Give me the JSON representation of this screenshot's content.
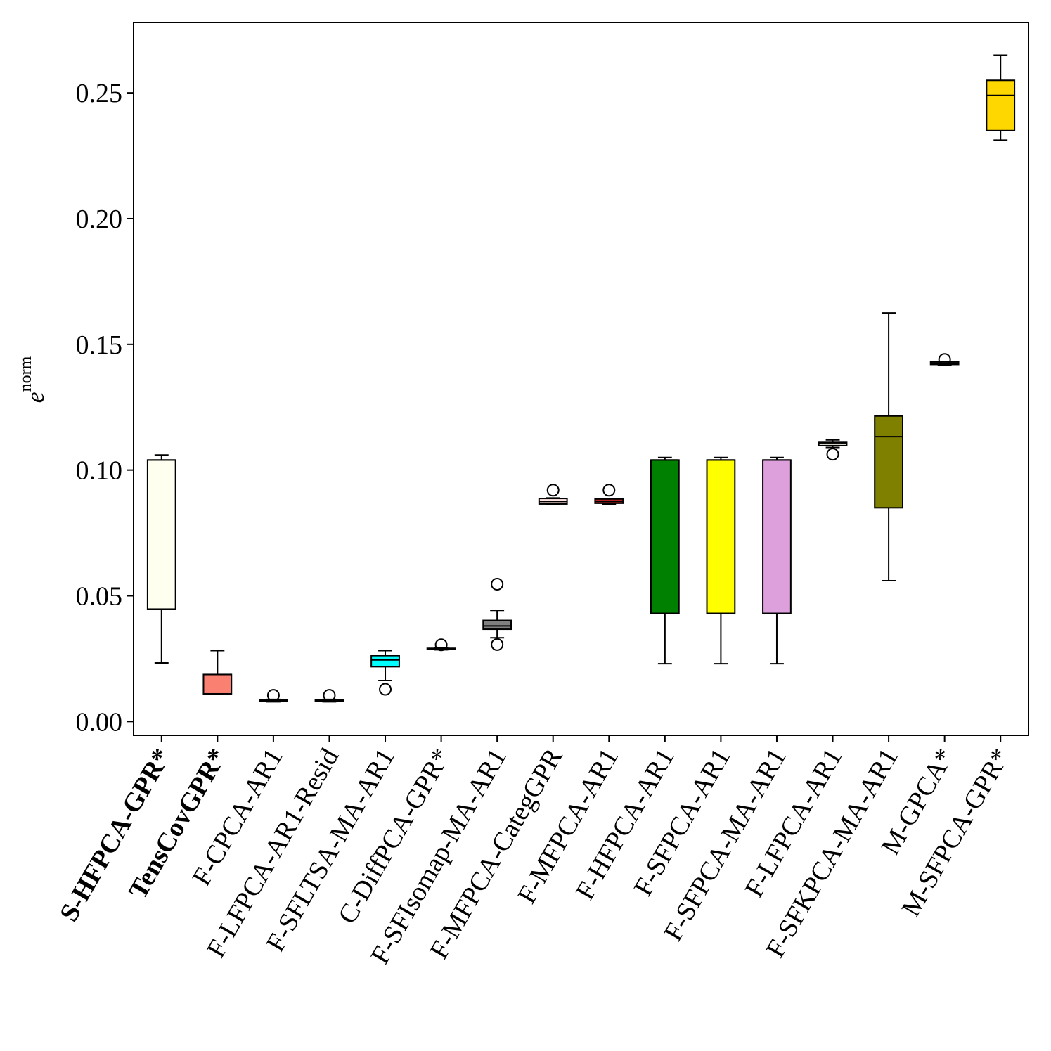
{
  "chart_data": {
    "type": "box",
    "ylabel": "e",
    "ylabel_superscript": "norm",
    "xlabel": "",
    "title": "",
    "ylim": [
      -0.0055,
      0.278
    ],
    "yticks": [
      0.0,
      0.05,
      0.1,
      0.15,
      0.2,
      0.25
    ],
    "ytick_labels": [
      "0.00",
      "0.05",
      "0.10",
      "0.15",
      "0.20",
      "0.25"
    ],
    "grid": false,
    "categories": [
      "S-HFPCA-GPR*",
      "TensCovGPR*",
      "F-CPCA-AR1",
      "F-LFPCA-AR1-Resid",
      "F-SFLTSA-MA-AR1",
      "C-DiffPCA-GPR*",
      "F-SFIsomap-MA-AR1",
      "F-MFPCA-CategGPR",
      "F-MFPCA-AR1",
      "F-HFPCA-AR1",
      "F-SFPCA-AR1",
      "F-SFPCA-MA-AR1",
      "F-LFPCA-AR1",
      "F-SFKPCA-MA-AR1",
      "M-GPCA*",
      "M-SFPCA-GPR*"
    ],
    "bold_categories": [
      "S-HFPCA-GPR*",
      "TensCovGPR*"
    ],
    "boxes": [
      {
        "whislo": 0.0233,
        "q1": 0.0447,
        "med": 0.104,
        "q3": 0.104,
        "whishi": 0.106,
        "fliers": [],
        "color": "#fffff0"
      },
      {
        "whislo": 0.0108,
        "q1": 0.011,
        "med": 0.0187,
        "q3": 0.0187,
        "whishi": 0.0282,
        "fliers": [],
        "color": "#fa8072"
      },
      {
        "whislo": 0.0078,
        "q1": 0.008,
        "med": 0.0083,
        "q3": 0.0087,
        "whishi": 0.0088,
        "fliers": [
          0.0104
        ],
        "color": "#dddddd"
      },
      {
        "whislo": 0.0078,
        "q1": 0.008,
        "med": 0.0083,
        "q3": 0.0087,
        "whishi": 0.0088,
        "fliers": [
          0.0104
        ],
        "color": "#dddddd"
      },
      {
        "whislo": 0.0163,
        "q1": 0.0218,
        "med": 0.0245,
        "q3": 0.0262,
        "whishi": 0.0282,
        "fliers": [
          0.0128
        ],
        "color": "#00ffff"
      },
      {
        "whislo": 0.0285,
        "q1": 0.0287,
        "med": 0.0289,
        "q3": 0.0291,
        "whishi": 0.0293,
        "fliers": [
          0.0305
        ],
        "color": "#ffc0cb"
      },
      {
        "whislo": 0.0333,
        "q1": 0.0367,
        "med": 0.038,
        "q3": 0.0402,
        "whishi": 0.0442,
        "fliers": [
          0.0306,
          0.0546
        ],
        "color": "#808080"
      },
      {
        "whislo": 0.0862,
        "q1": 0.0865,
        "med": 0.0875,
        "q3": 0.0887,
        "whishi": 0.0889,
        "fliers": [
          0.092
        ],
        "color": "#ffe4e1"
      },
      {
        "whislo": 0.0865,
        "q1": 0.0868,
        "med": 0.0875,
        "q3": 0.0885,
        "whishi": 0.0887,
        "fliers": [
          0.092
        ],
        "color": "#b22222"
      },
      {
        "whislo": 0.023,
        "q1": 0.043,
        "med": 0.104,
        "q3": 0.104,
        "whishi": 0.105,
        "fliers": [],
        "color": "#008000"
      },
      {
        "whislo": 0.023,
        "q1": 0.043,
        "med": 0.104,
        "q3": 0.104,
        "whishi": 0.105,
        "fliers": [],
        "color": "#ffff00"
      },
      {
        "whislo": 0.023,
        "q1": 0.043,
        "med": 0.104,
        "q3": 0.104,
        "whishi": 0.105,
        "fliers": [],
        "color": "#dda0dd"
      },
      {
        "whislo": 0.109,
        "q1": 0.1097,
        "med": 0.1105,
        "q3": 0.111,
        "whishi": 0.112,
        "fliers": [
          0.1063
        ],
        "color": "#fffff0"
      },
      {
        "whislo": 0.056,
        "q1": 0.085,
        "med": 0.1133,
        "q3": 0.1215,
        "whishi": 0.1625,
        "fliers": [],
        "color": "#808000"
      },
      {
        "whislo": 0.1418,
        "q1": 0.142,
        "med": 0.1425,
        "q3": 0.143,
        "whishi": 0.1432,
        "fliers": [
          0.144
        ],
        "color": "#ffffff"
      },
      {
        "whislo": 0.2312,
        "q1": 0.235,
        "med": 0.249,
        "q3": 0.255,
        "whishi": 0.265,
        "fliers": [],
        "color": "#ffd700"
      }
    ]
  }
}
